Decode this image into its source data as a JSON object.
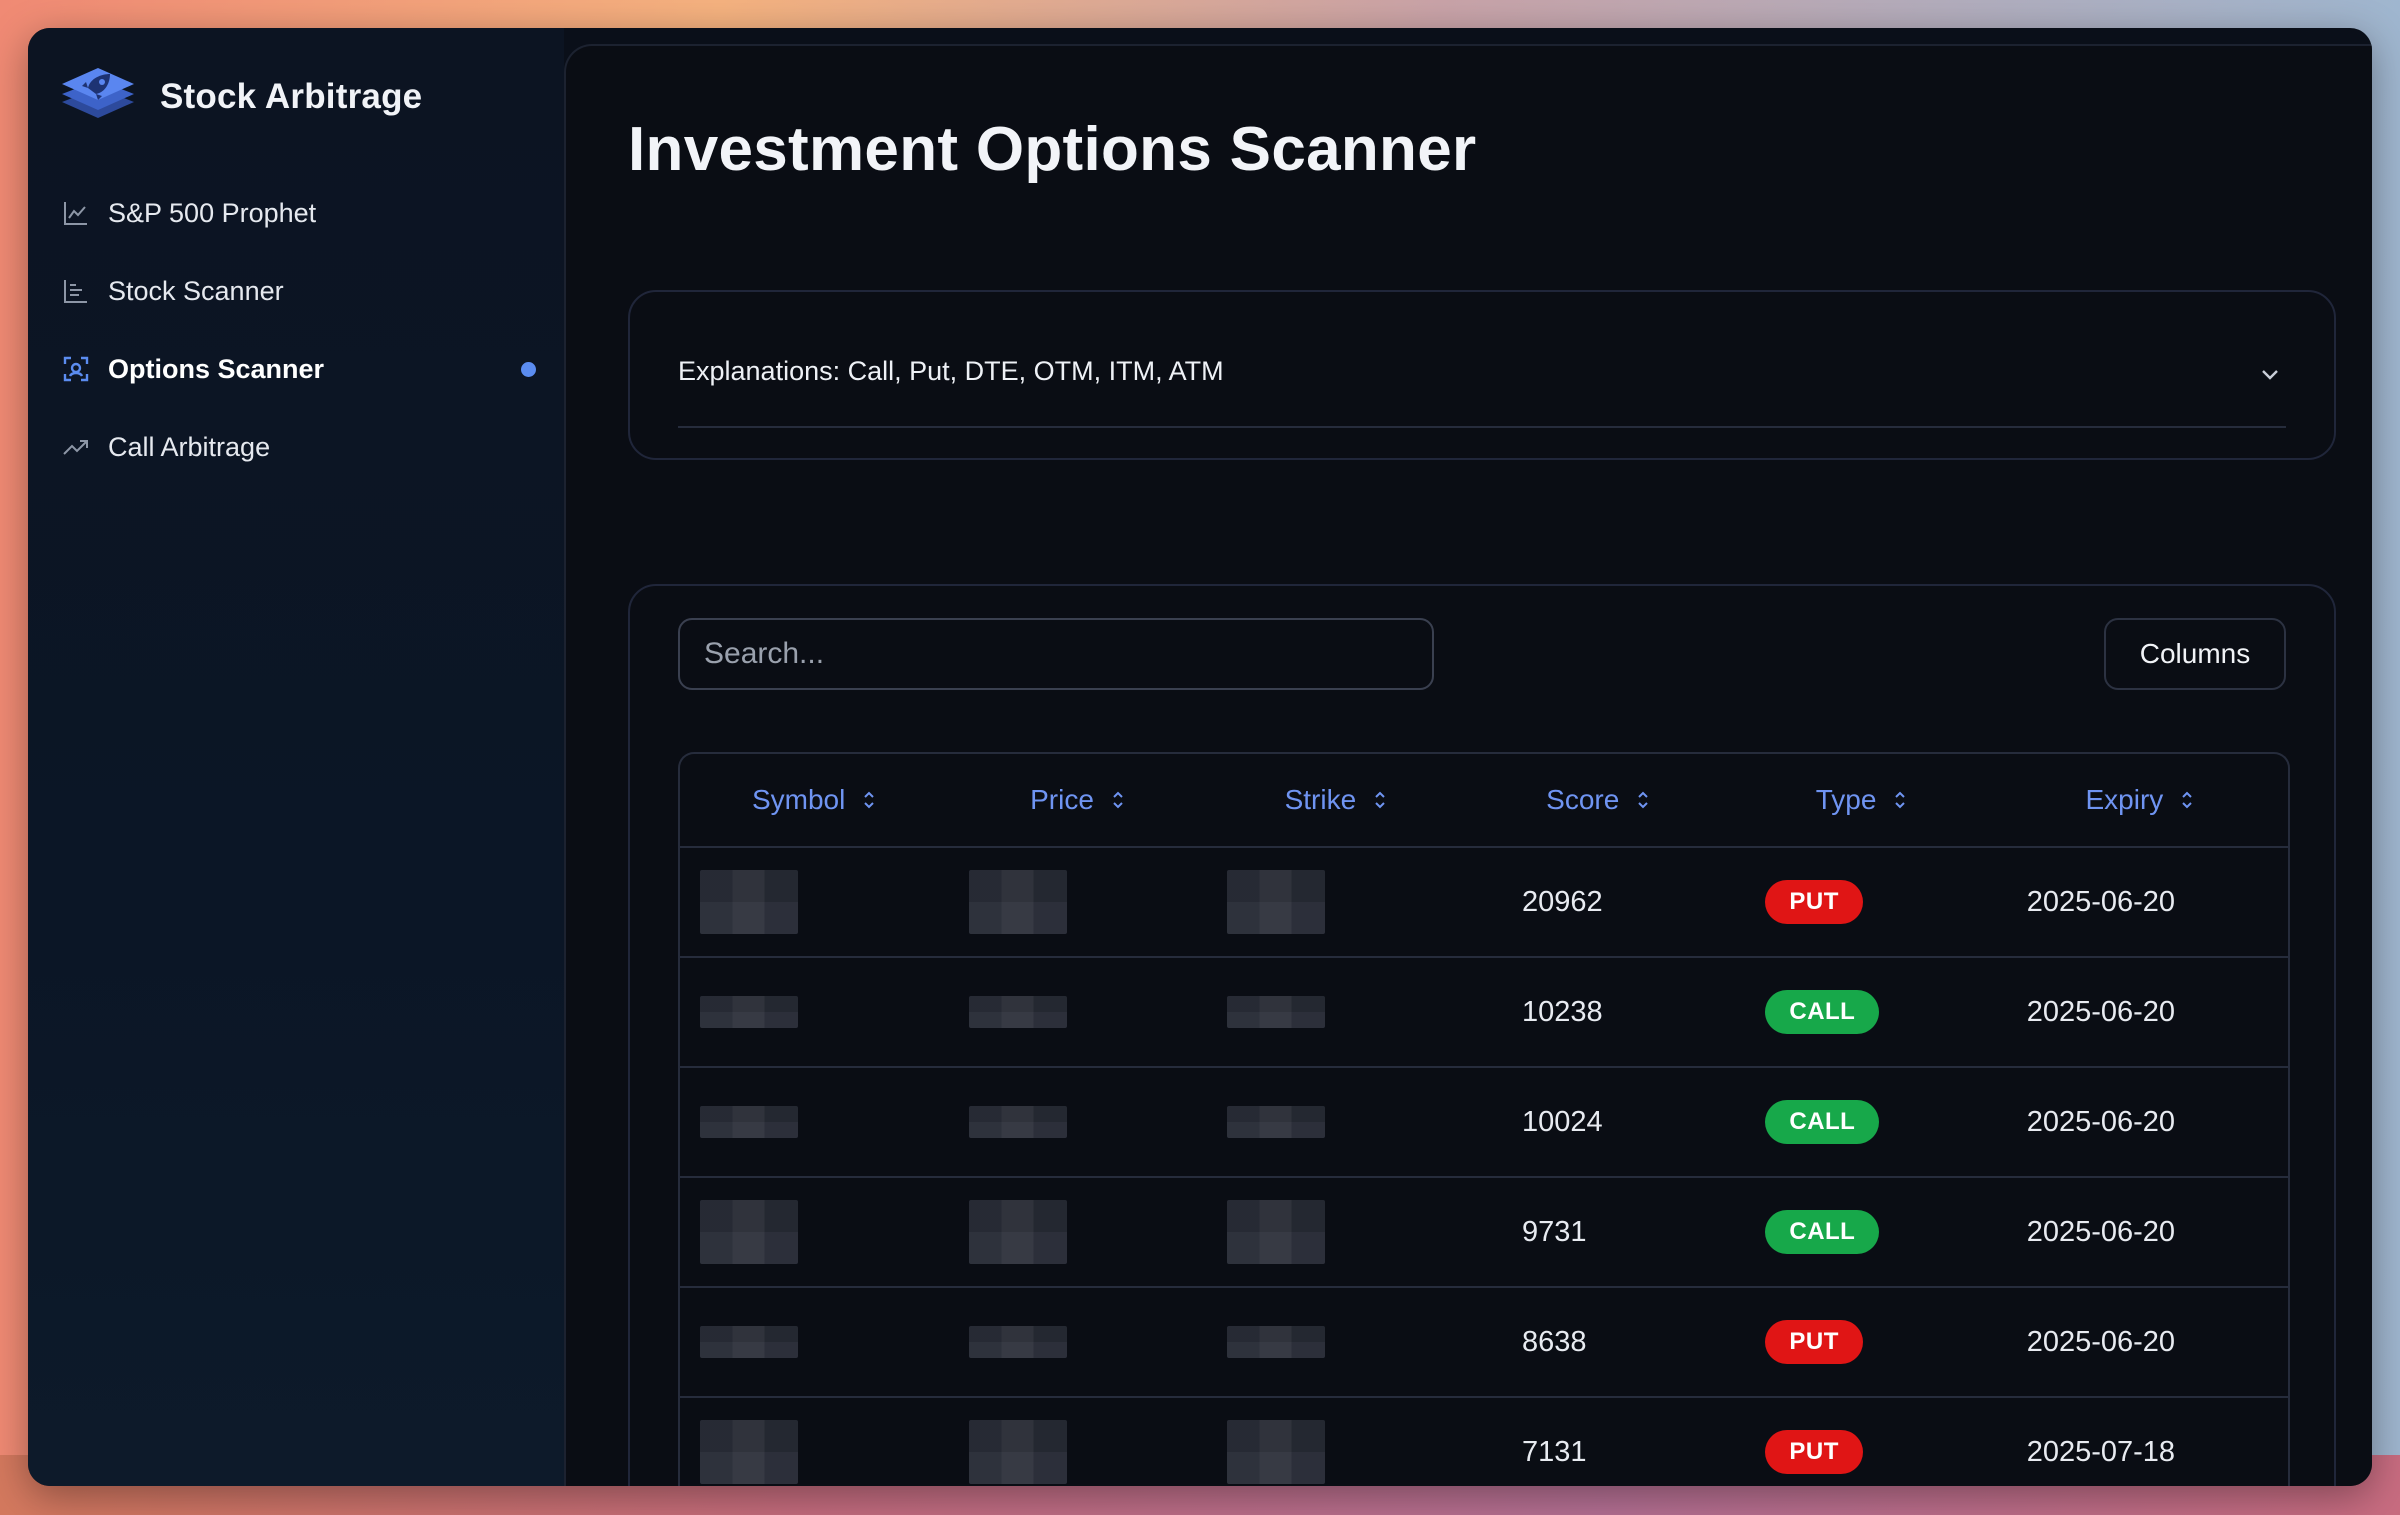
{
  "app": {
    "brand_title": "Stock Arbitrage",
    "logo_icon": "rocket-logo"
  },
  "sidebar": {
    "items": [
      {
        "label": "S&P 500 Prophet",
        "icon": "line-chart-icon",
        "active": false
      },
      {
        "label": "Stock Scanner",
        "icon": "bar-chart-icon",
        "active": false
      },
      {
        "label": "Options Scanner",
        "icon": "scan-icon",
        "active": true
      },
      {
        "label": "Call Arbitrage",
        "icon": "trending-up-icon",
        "active": false
      }
    ]
  },
  "main": {
    "page_title": "Investment Options Scanner",
    "accordion": {
      "title": "Explanations: Call, Put, DTE, OTM, ITM, ATM"
    },
    "search": {
      "placeholder": "Search...",
      "value": ""
    },
    "columns_button": "Columns",
    "table": {
      "headers": [
        "Symbol",
        "Price",
        "Strike",
        "Score",
        "Type",
        "Expiry"
      ],
      "rows": [
        {
          "symbol": "",
          "price": "",
          "strike": "",
          "score": "20962",
          "type": "PUT",
          "expiry": "2025-06-20"
        },
        {
          "symbol": "",
          "price": "",
          "strike": "",
          "score": "10238",
          "type": "CALL",
          "expiry": "2025-06-20"
        },
        {
          "symbol": "",
          "price": "",
          "strike": "",
          "score": "10024",
          "type": "CALL",
          "expiry": "2025-06-20"
        },
        {
          "symbol": "",
          "price": "",
          "strike": "",
          "score": "9731",
          "type": "CALL",
          "expiry": "2025-06-20"
        },
        {
          "symbol": "",
          "price": "",
          "strike": "",
          "score": "8638",
          "type": "PUT",
          "expiry": "2025-06-20"
        },
        {
          "symbol": "",
          "price": "",
          "strike": "",
          "score": "7131",
          "type": "PUT",
          "expiry": "2025-07-18"
        }
      ]
    }
  },
  "colors": {
    "accent": "#5b8cf0",
    "header_text": "#6f94f2",
    "put_badge": "#e01515",
    "call_badge": "#17a84a"
  }
}
